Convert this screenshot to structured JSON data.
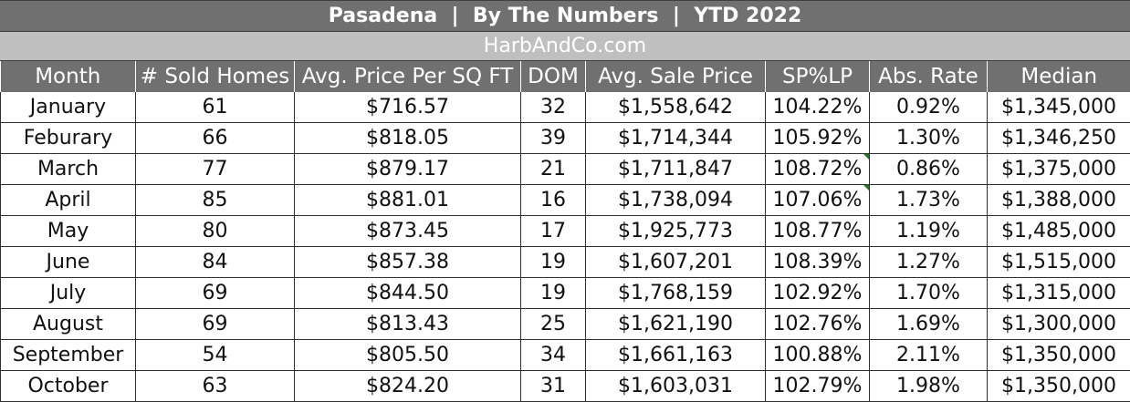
{
  "header": {
    "title": "Pasadena  |  By The Numbers  |  YTD 2022",
    "subtitle": "HarbAndCo.com"
  },
  "table": {
    "columns": [
      "Month",
      "# Sold Homes",
      "Avg. Price Per SQ FT",
      "DOM",
      "Avg. Sale Price",
      "SP%LP",
      "Abs. Rate",
      "Median"
    ],
    "rows": [
      [
        "January",
        "61",
        "$716.57",
        "32",
        "$1,558,642",
        "104.22%",
        "0.92%",
        "$1,345,000"
      ],
      [
        "Feburary",
        "66",
        "$818.05",
        "39",
        "$1,714,344",
        "105.92%",
        "1.30%",
        "$1,346,250"
      ],
      [
        "March",
        "77",
        "$879.17",
        "21",
        "$1,711,847",
        "108.72%",
        "0.86%",
        "$1,375,000"
      ],
      [
        "April",
        "85",
        "$881.01",
        "16",
        "$1,738,094",
        "107.06%",
        "1.73%",
        "$1,388,000"
      ],
      [
        "May",
        "80",
        "$873.45",
        "17",
        "$1,925,773",
        "108.77%",
        "1.19%",
        "$1,485,000"
      ],
      [
        "June",
        "84",
        "$857.38",
        "19",
        "$1,607,201",
        "108.39%",
        "1.27%",
        "$1,515,000"
      ],
      [
        "July",
        "69",
        "$844.50",
        "19",
        "$1,768,159",
        "102.92%",
        "1.70%",
        "$1,315,000"
      ],
      [
        "August",
        "69",
        "$813.43",
        "25",
        "$1,621,190",
        "102.76%",
        "1.69%",
        "$1,300,000"
      ],
      [
        "September",
        "54",
        "$805.50",
        "34",
        "$1,661,163",
        "100.88%",
        "2.11%",
        "$1,350,000"
      ],
      [
        "October",
        "63",
        "$824.20",
        "31",
        "$1,603,031",
        "102.79%",
        "1.98%",
        "$1,350,000"
      ]
    ]
  },
  "colors": {
    "header_bg": "#707070",
    "subtitle_bg": "#bfbfbf",
    "comment_flag": "#1a7a1a"
  }
}
